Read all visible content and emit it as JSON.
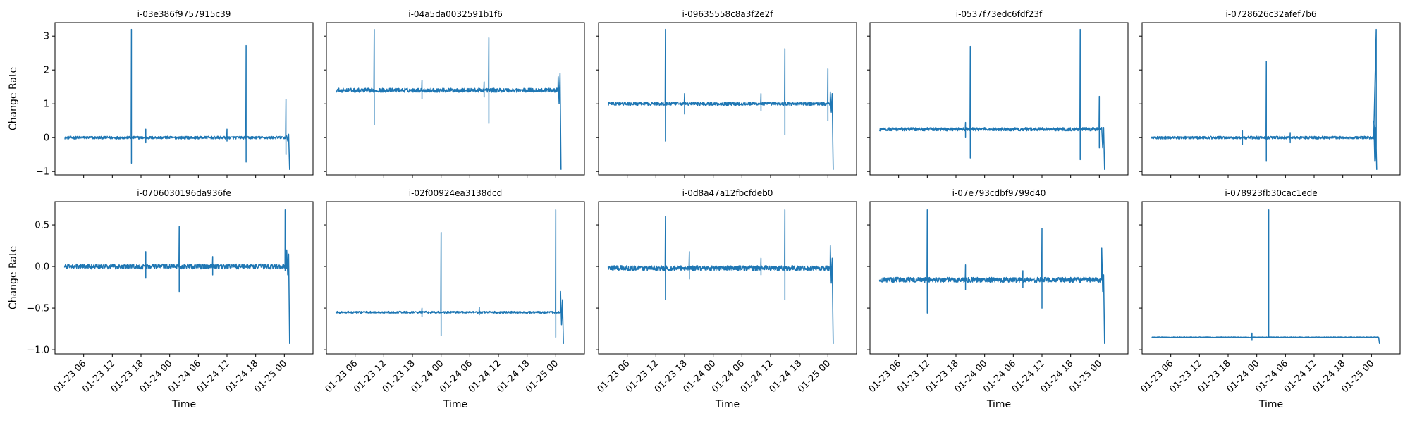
{
  "figure": {
    "line_color": "#1f77b4",
    "share_y": "row"
  },
  "chart_data": [
    {
      "type": "line",
      "title": "i-03e386f9757915c39",
      "xlabel": "",
      "ylabel": "Change Rate",
      "xlim": [
        "2023-01-23T00:00",
        "2023-01-25T06:00"
      ],
      "ylim": [
        -1.1,
        3.4
      ],
      "yticks": [
        -1,
        0,
        1,
        2,
        3
      ],
      "xticks": [],
      "baseline": 0.0,
      "noise": 0.04,
      "end": {
        "start": "2023-01-25T00:30",
        "values": [
          0.05,
          -0.1,
          0.1,
          -0.95
        ]
      },
      "spikes": [
        {
          "x": "2023-01-23T16:00",
          "values": [
            3.2,
            -0.75
          ]
        },
        {
          "x": "2023-01-23T19:00",
          "values": [
            0.25,
            -0.15
          ]
        },
        {
          "x": "2023-01-24T12:00",
          "values": [
            0.25,
            -0.1
          ]
        },
        {
          "x": "2023-01-24T16:00",
          "values": [
            2.72,
            -0.72
          ]
        },
        {
          "x": "2023-01-25T00:20",
          "values": [
            1.13,
            -0.5
          ]
        }
      ]
    },
    {
      "type": "line",
      "title": "i-04a5da0032591b1f6",
      "xlabel": "",
      "ylabel": "",
      "xlim": [
        "2023-01-23T00:00",
        "2023-01-25T06:00"
      ],
      "ylim": [
        -1.1,
        3.4
      ],
      "yticks": [
        -1,
        0,
        1,
        2,
        3
      ],
      "xticks": [],
      "baseline": 1.4,
      "noise": 0.06,
      "end": {
        "start": "2023-01-25T00:30",
        "values": [
          1.8,
          1.0,
          1.9,
          -0.95
        ]
      },
      "spikes": [
        {
          "x": "2023-01-23T10:00",
          "values": [
            3.2,
            0.38
          ]
        },
        {
          "x": "2023-01-23T20:00",
          "values": [
            1.7,
            1.15
          ]
        },
        {
          "x": "2023-01-24T09:00",
          "values": [
            1.65,
            1.2
          ]
        },
        {
          "x": "2023-01-24T10:00",
          "values": [
            2.95,
            0.42
          ]
        }
      ]
    },
    {
      "type": "line",
      "title": "i-09635558c8a3f2e2f",
      "xlabel": "",
      "ylabel": "",
      "xlim": [
        "2023-01-23T00:00",
        "2023-01-25T06:00"
      ],
      "ylim": [
        -1.1,
        3.4
      ],
      "yticks": [
        -1,
        0,
        1,
        2,
        3
      ],
      "xticks": [],
      "baseline": 1.0,
      "noise": 0.05,
      "end": {
        "start": "2023-01-25T00:30",
        "values": [
          1.35,
          0.75,
          1.3,
          -0.95
        ]
      },
      "spikes": [
        {
          "x": "2023-01-23T14:00",
          "values": [
            3.2,
            -0.1
          ]
        },
        {
          "x": "2023-01-23T18:00",
          "values": [
            1.3,
            0.7
          ]
        },
        {
          "x": "2023-01-24T10:00",
          "values": [
            1.3,
            0.8
          ]
        },
        {
          "x": "2023-01-24T15:00",
          "values": [
            2.63,
            0.08
          ]
        },
        {
          "x": "2023-01-25T00:00",
          "values": [
            2.03,
            0.5
          ]
        }
      ]
    },
    {
      "type": "line",
      "title": "i-0537f73edc6fdf23f",
      "xlabel": "",
      "ylabel": "",
      "xlim": [
        "2023-01-23T00:00",
        "2023-01-25T06:00"
      ],
      "ylim": [
        -1.1,
        3.4
      ],
      "yticks": [
        -1,
        0,
        1,
        2,
        3
      ],
      "xticks": [],
      "baseline": 0.25,
      "noise": 0.05,
      "end": {
        "start": "2023-01-25T00:30",
        "values": [
          0.3,
          -0.3,
          0.3,
          -0.95
        ]
      },
      "spikes": [
        {
          "x": "2023-01-23T20:00",
          "values": [
            0.45,
            0.0
          ]
        },
        {
          "x": "2023-01-23T21:00",
          "values": [
            2.7,
            -0.6
          ]
        },
        {
          "x": "2023-01-24T20:00",
          "values": [
            3.2,
            -0.65
          ]
        },
        {
          "x": "2023-01-25T00:00",
          "values": [
            1.22,
            -0.3
          ]
        }
      ]
    },
    {
      "type": "line",
      "title": "i-0728626c32afef7b6",
      "xlabel": "",
      "ylabel": "",
      "xlim": [
        "2023-01-23T00:00",
        "2023-01-25T06:00"
      ],
      "ylim": [
        -1.1,
        3.4
      ],
      "yticks": [
        -1,
        0,
        1,
        2,
        3
      ],
      "xticks": [],
      "baseline": 0.0,
      "noise": 0.04,
      "end": {
        "start": "2023-01-25T00:30",
        "values": [
          0.5,
          -0.7,
          0.3,
          -0.95
        ]
      },
      "spikes": [
        {
          "x": "2023-01-23T21:00",
          "values": [
            0.2,
            -0.2
          ]
        },
        {
          "x": "2023-01-24T02:00",
          "values": [
            2.25,
            -0.7
          ]
        },
        {
          "x": "2023-01-24T07:00",
          "values": [
            0.15,
            -0.15
          ]
        },
        {
          "x": "2023-01-25T01:00",
          "values": [
            3.2,
            -0.7
          ]
        }
      ]
    },
    {
      "type": "line",
      "title": "i-0706030196da936fe",
      "xlabel": "Time",
      "ylabel": "Change Rate",
      "xlim": [
        "2023-01-23T00:00",
        "2023-01-25T06:00"
      ],
      "ylim": [
        -1.05,
        0.78
      ],
      "yticks": [
        -1.0,
        -0.5,
        0.0,
        0.5
      ],
      "yticklabels": [
        "−1.0",
        "−0.5",
        "0.0",
        "0.5"
      ],
      "xticks": [
        "2023-01-23T06:00",
        "2023-01-23T12:00",
        "2023-01-23T18:00",
        "2023-01-24T00:00",
        "2023-01-24T06:00",
        "2023-01-24T12:00",
        "2023-01-24T18:00",
        "2023-01-25T00:00"
      ],
      "xticklabels": [
        "01-23 06",
        "01-23 12",
        "01-23 18",
        "01-24 00",
        "01-24 06",
        "01-24 12",
        "01-24 18",
        "01-25 00"
      ],
      "baseline": 0.0,
      "noise": 0.03,
      "end": {
        "start": "2023-01-25T00:30",
        "values": [
          0.2,
          -0.1,
          0.15,
          -0.93
        ]
      },
      "spikes": [
        {
          "x": "2023-01-23T19:00",
          "values": [
            0.18,
            -0.14
          ]
        },
        {
          "x": "2023-01-24T02:00",
          "values": [
            0.48,
            -0.3
          ]
        },
        {
          "x": "2023-01-24T09:00",
          "values": [
            0.12,
            -0.1
          ]
        },
        {
          "x": "2023-01-25T00:10",
          "values": [
            0.68,
            -0.05
          ]
        }
      ]
    },
    {
      "type": "line",
      "title": "i-02f00924ea3138dcd",
      "xlabel": "Time",
      "ylabel": "",
      "xlim": [
        "2023-01-23T00:00",
        "2023-01-25T06:00"
      ],
      "ylim": [
        -1.05,
        0.78
      ],
      "yticks": [
        -1.0,
        -0.5,
        0.0,
        0.5
      ],
      "xticks": [
        "2023-01-23T06:00",
        "2023-01-23T12:00",
        "2023-01-23T18:00",
        "2023-01-24T00:00",
        "2023-01-24T06:00",
        "2023-01-24T12:00",
        "2023-01-24T18:00",
        "2023-01-25T00:00"
      ],
      "xticklabels": [
        "01-23 06",
        "01-23 12",
        "01-23 18",
        "01-24 00",
        "01-24 06",
        "01-24 12",
        "01-24 18",
        "01-25 00"
      ],
      "baseline": -0.55,
      "noise": 0.012,
      "end": {
        "start": "2023-01-25T01:00",
        "values": [
          -0.3,
          -0.7,
          -0.4,
          -0.93
        ]
      },
      "spikes": [
        {
          "x": "2023-01-23T20:00",
          "values": [
            -0.5,
            -0.6
          ]
        },
        {
          "x": "2023-01-24T00:00",
          "values": [
            0.41,
            -0.83
          ]
        },
        {
          "x": "2023-01-24T08:00",
          "values": [
            -0.49,
            -0.58
          ]
        },
        {
          "x": "2023-01-25T00:00",
          "values": [
            0.68,
            -0.85
          ]
        }
      ]
    },
    {
      "type": "line",
      "title": "i-0d8a47a12fbcfdeb0",
      "xlabel": "Time",
      "ylabel": "",
      "xlim": [
        "2023-01-23T00:00",
        "2023-01-25T06:00"
      ],
      "ylim": [
        -1.05,
        0.78
      ],
      "yticks": [
        -1.0,
        -0.5,
        0.0,
        0.5
      ],
      "xticks": [
        "2023-01-23T06:00",
        "2023-01-23T12:00",
        "2023-01-23T18:00",
        "2023-01-24T00:00",
        "2023-01-24T06:00",
        "2023-01-24T12:00",
        "2023-01-24T18:00",
        "2023-01-25T00:00"
      ],
      "xticklabels": [
        "01-23 06",
        "01-23 12",
        "01-23 18",
        "01-24 00",
        "01-24 06",
        "01-24 12",
        "01-24 18",
        "01-25 00"
      ],
      "baseline": -0.02,
      "noise": 0.03,
      "end": {
        "start": "2023-01-25T00:30",
        "values": [
          0.25,
          -0.2,
          0.1,
          -0.93
        ]
      },
      "spikes": [
        {
          "x": "2023-01-23T14:00",
          "values": [
            0.6,
            -0.4
          ]
        },
        {
          "x": "2023-01-23T19:00",
          "values": [
            0.18,
            -0.15
          ]
        },
        {
          "x": "2023-01-24T10:00",
          "values": [
            0.1,
            -0.1
          ]
        },
        {
          "x": "2023-01-24T15:00",
          "values": [
            0.68,
            -0.4
          ]
        }
      ]
    },
    {
      "type": "line",
      "title": "i-07e793cdbf9799d40",
      "xlabel": "Time",
      "ylabel": "",
      "xlim": [
        "2023-01-23T00:00",
        "2023-01-25T06:00"
      ],
      "ylim": [
        -1.05,
        0.78
      ],
      "yticks": [
        -1.0,
        -0.5,
        0.0,
        0.5
      ],
      "xticks": [
        "2023-01-23T06:00",
        "2023-01-23T12:00",
        "2023-01-23T18:00",
        "2023-01-24T00:00",
        "2023-01-24T06:00",
        "2023-01-24T12:00",
        "2023-01-24T18:00",
        "2023-01-25T00:00"
      ],
      "xticklabels": [
        "01-23 06",
        "01-23 12",
        "01-23 18",
        "01-24 00",
        "01-24 06",
        "01-24 12",
        "01-24 18",
        "01-25 00"
      ],
      "baseline": -0.16,
      "noise": 0.03,
      "end": {
        "start": "2023-01-25T00:30",
        "values": [
          0.22,
          -0.3,
          -0.1,
          -0.93
        ]
      },
      "spikes": [
        {
          "x": "2023-01-23T12:00",
          "values": [
            0.68,
            -0.56
          ]
        },
        {
          "x": "2023-01-23T20:00",
          "values": [
            0.02,
            -0.28
          ]
        },
        {
          "x": "2023-01-24T12:00",
          "values": [
            0.46,
            -0.5
          ]
        },
        {
          "x": "2023-01-24T08:00",
          "values": [
            -0.05,
            -0.25
          ]
        }
      ]
    },
    {
      "type": "line",
      "title": "i-078923fb30cac1ede",
      "xlabel": "Time",
      "ylabel": "",
      "xlim": [
        "2023-01-23T00:00",
        "2023-01-25T06:00"
      ],
      "ylim": [
        -1.05,
        0.78
      ],
      "yticks": [
        -1.0,
        -0.5,
        0.0,
        0.5
      ],
      "xticks": [
        "2023-01-23T06:00",
        "2023-01-23T12:00",
        "2023-01-23T18:00",
        "2023-01-24T00:00",
        "2023-01-24T06:00",
        "2023-01-24T12:00",
        "2023-01-24T18:00",
        "2023-01-25T00:00"
      ],
      "xticklabels": [
        "01-23 06",
        "01-23 12",
        "01-23 18",
        "01-24 00",
        "01-24 06",
        "01-24 12",
        "01-24 18",
        "01-25 00"
      ],
      "baseline": -0.85,
      "noise": 0.004,
      "end": {
        "start": "2023-01-25T01:30",
        "values": [
          -0.85,
          -0.93
        ]
      },
      "spikes": [
        {
          "x": "2023-01-23T23:00",
          "values": [
            -0.8,
            -0.88
          ]
        },
        {
          "x": "2023-01-24T02:30",
          "values": [
            0.68,
            -0.83
          ]
        }
      ]
    }
  ]
}
